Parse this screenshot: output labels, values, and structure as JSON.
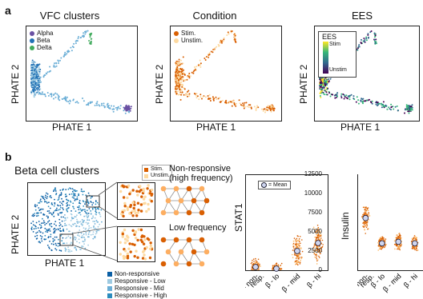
{
  "panel_a": {
    "letter": "a",
    "plots": [
      {
        "title": "VFC clusters",
        "legend": [
          {
            "label": "Alpha",
            "color": "#6a51a3"
          },
          {
            "label": "Beta",
            "color": "#2171b5"
          },
          {
            "label": "Delta",
            "color": "#41ab5d"
          }
        ]
      },
      {
        "title": "Condition",
        "legend": [
          {
            "label": "Stim.",
            "color": "#d95f02"
          },
          {
            "label": "Unstim.",
            "color": "#fdd9a0"
          }
        ]
      },
      {
        "title": "EES",
        "colorbar_title": "EES",
        "colorbar_top": "Stim",
        "colorbar_bottom": "Unstim"
      }
    ],
    "xlabel": "PHATE 1",
    "ylabel": "PHATE 2"
  },
  "panel_b": {
    "letter": "b",
    "title": "Beta cell clusters",
    "xlabel": "PHATE 1",
    "ylabel": "PHATE 2",
    "legend": [
      {
        "label": "Non-responsive",
        "color": "#0b5fa5"
      },
      {
        "label": "Responsive - Low",
        "color": "#9ecae1"
      },
      {
        "label": "Responsive - Mid",
        "color": "#6baed6"
      },
      {
        "label": "Responsive - High",
        "color": "#2b8cbe"
      }
    ],
    "inset_legend": [
      {
        "label": "Stim.",
        "color": "#d95f02"
      },
      {
        "label": "Unstim.",
        "color": "#fdd9a0"
      }
    ],
    "annotation_high_line1": "Non-responsive",
    "annotation_high_line2": "(high frequency)",
    "annotation_low": "Low frequency",
    "mean_legend": "= Mean",
    "categories": [
      "β - non-resp.",
      "β - lo",
      "β - mid",
      "β - hi"
    ],
    "cat_line1": [
      "β - non-",
      "β - lo",
      "β - mid",
      "β - hi"
    ],
    "cat_line2": [
      "resp.",
      "",
      "",
      ""
    ]
  },
  "chart_data": [
    {
      "type": "scatter",
      "title": "",
      "ylabel": "STAT1",
      "categories": [
        "β - non-resp.",
        "β - lo",
        "β - mid",
        "β - hi"
      ],
      "means": [
        1,
        0.5,
        6,
        8.5
      ],
      "ylim": [
        0,
        30
      ],
      "yticks": []
    },
    {
      "type": "scatter",
      "title": "",
      "ylabel": "Insulin",
      "categories": [
        "β - non-resp.",
        "β - lo",
        "β - mid",
        "β - hi"
      ],
      "means": [
        6800,
        3500,
        3700,
        3500
      ],
      "ylim": [
        0,
        12500
      ],
      "yticks": [
        0,
        2500,
        5000,
        7500,
        10000,
        12500
      ]
    }
  ]
}
